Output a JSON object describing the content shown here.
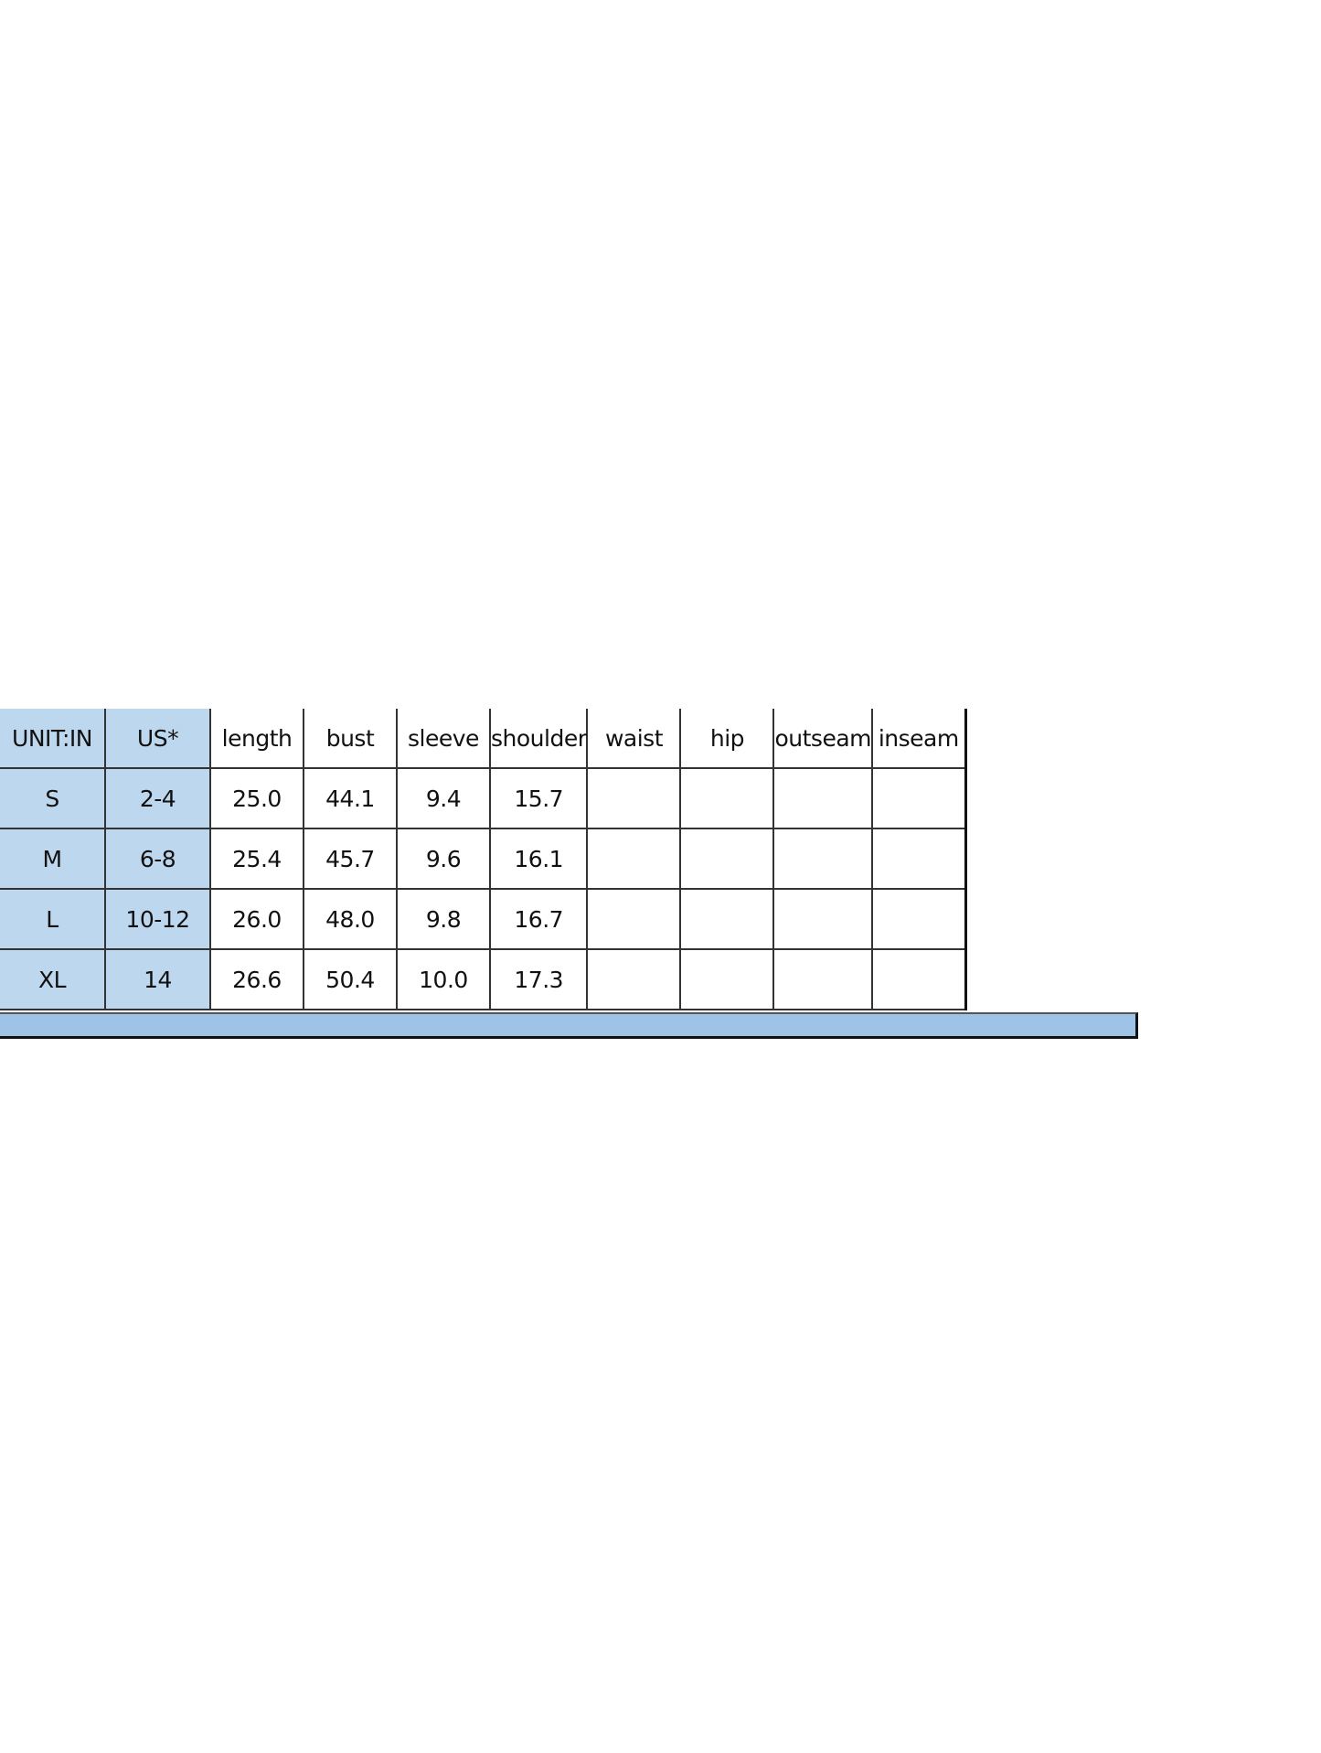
{
  "table": {
    "headers": [
      "UNIT:IN",
      "US*",
      "length",
      "bust",
      "sleeve",
      "shoulder",
      "waist",
      "hip",
      "outseam",
      "inseam"
    ],
    "rows": [
      [
        "S",
        "2-4",
        "25.0",
        "44.1",
        "9.4",
        "15.7",
        "",
        "",
        "",
        ""
      ],
      [
        "M",
        "6-8",
        "25.4",
        "45.7",
        "9.6",
        "16.1",
        "",
        "",
        "",
        ""
      ],
      [
        "L",
        "10-12",
        "26.0",
        "48.0",
        "9.8",
        "16.7",
        "",
        "",
        "",
        ""
      ],
      [
        "XL",
        "14",
        "26.6",
        "50.4",
        "10.0",
        "17.3",
        "",
        "",
        "",
        ""
      ]
    ]
  },
  "colors": {
    "header_fill": "#bdd7ee",
    "footer_bar": "#9dc3e6"
  }
}
